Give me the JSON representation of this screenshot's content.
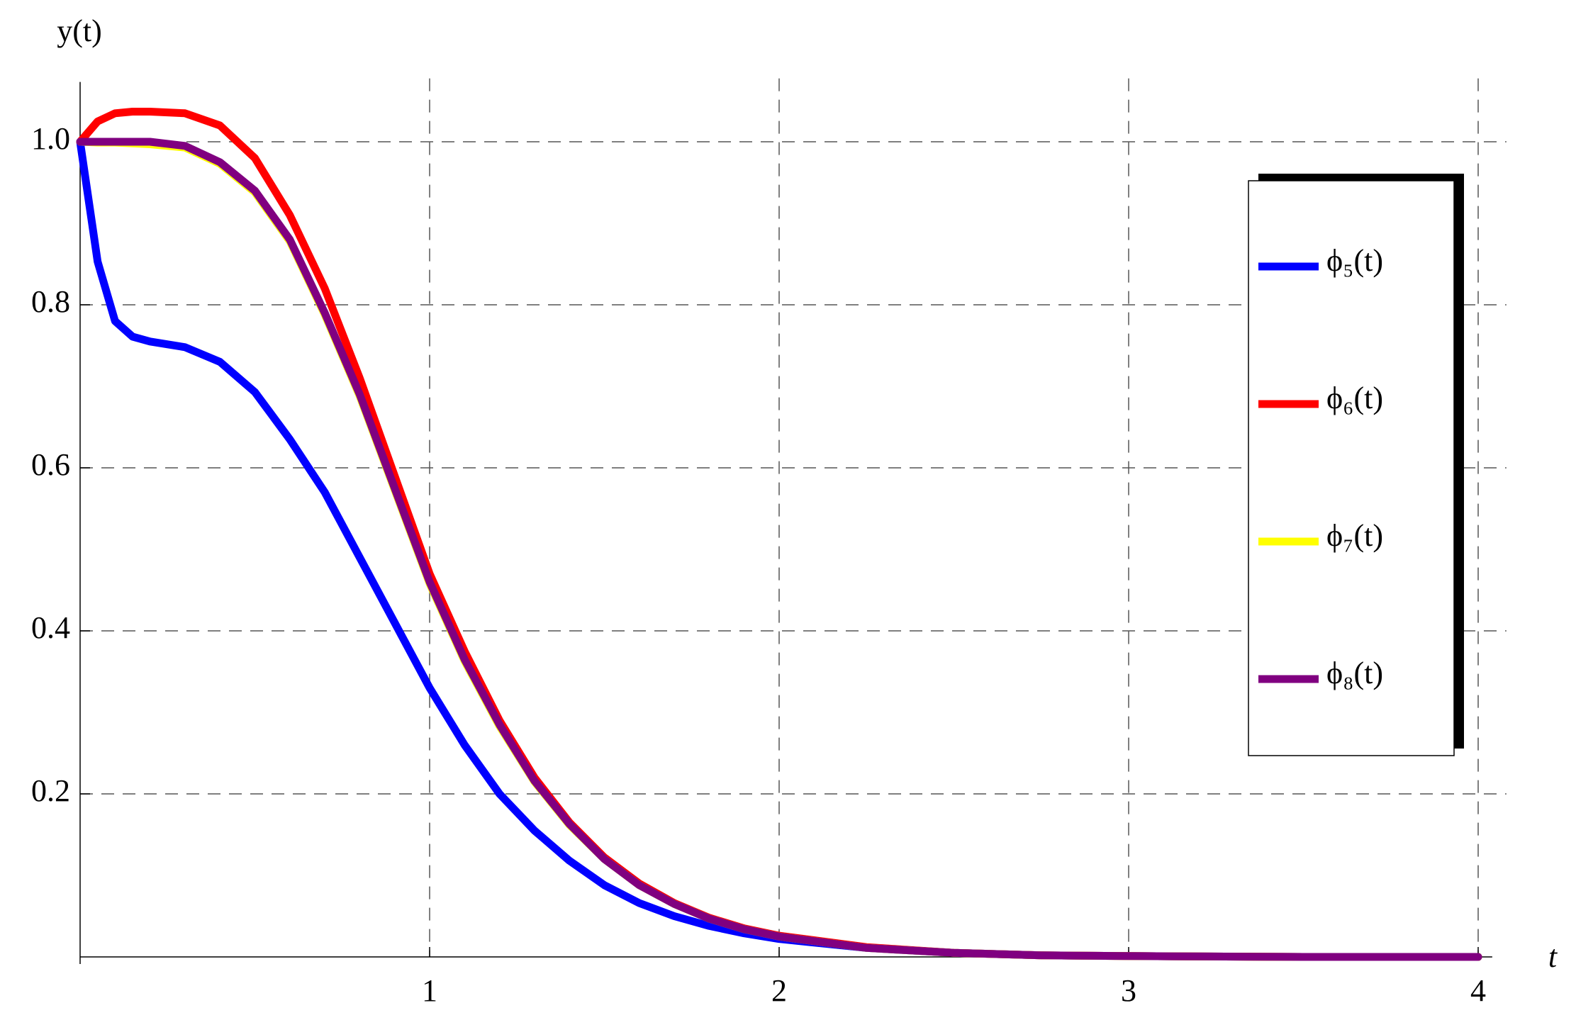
{
  "chart_data": {
    "type": "line",
    "x_label": "t",
    "y_label": "y(t)",
    "x": [
      0,
      0.05,
      0.1,
      0.15,
      0.2,
      0.3,
      0.4,
      0.5,
      0.6,
      0.7,
      0.8,
      0.9,
      1.0,
      1.1,
      1.2,
      1.3,
      1.4,
      1.5,
      1.6,
      1.7,
      1.8,
      1.9,
      2.0,
      2.25,
      2.5,
      2.75,
      3.0,
      3.5,
      4.0
    ],
    "series": [
      {
        "name": "ϕ₅(t)",
        "color": "#0000ff",
        "values": [
          1.0,
          0.853,
          0.78,
          0.761,
          0.755,
          0.748,
          0.73,
          0.693,
          0.635,
          0.57,
          0.49,
          0.41,
          0.33,
          0.26,
          0.2,
          0.155,
          0.118,
          0.088,
          0.066,
          0.05,
          0.038,
          0.029,
          0.022,
          0.011,
          0.005,
          0.002,
          0.001,
          0,
          0
        ]
      },
      {
        "name": "ϕ₆(t)",
        "color": "#ff0000",
        "values": [
          1.0,
          1.025,
          1.035,
          1.037,
          1.037,
          1.035,
          1.02,
          0.98,
          0.91,
          0.82,
          0.71,
          0.59,
          0.47,
          0.375,
          0.29,
          0.22,
          0.165,
          0.122,
          0.09,
          0.066,
          0.048,
          0.035,
          0.026,
          0.012,
          0.005,
          0.002,
          0.001,
          0,
          0
        ]
      },
      {
        "name": "ϕ₇(t)",
        "color": "#ffff00",
        "values": [
          1.0,
          0.999,
          0.999,
          0.998,
          0.997,
          0.993,
          0.973,
          0.938,
          0.878,
          0.788,
          0.688,
          0.573,
          0.458,
          0.363,
          0.283,
          0.215,
          0.162,
          0.12,
          0.088,
          0.065,
          0.047,
          0.034,
          0.025,
          0.011,
          0.005,
          0.002,
          0.001,
          0,
          0
        ]
      },
      {
        "name": "ϕ₈(t)",
        "color": "#800080",
        "values": [
          1.0,
          1.0,
          1.0,
          1.0,
          1.0,
          0.995,
          0.975,
          0.94,
          0.88,
          0.79,
          0.69,
          0.575,
          0.46,
          0.365,
          0.285,
          0.216,
          0.163,
          0.12,
          0.088,
          0.065,
          0.047,
          0.034,
          0.025,
          0.011,
          0.005,
          0.002,
          0.001,
          0,
          0
        ]
      }
    ],
    "xlim": [
      0,
      4.02
    ],
    "ylim": [
      0,
      1.069
    ],
    "xticks": [
      1,
      2,
      3,
      4
    ],
    "yticks": [
      0.2,
      0.4,
      0.6,
      0.8,
      {
        "value": 1.0,
        "label": "1.0"
      }
    ],
    "grid": true,
    "legend_position": "right"
  }
}
